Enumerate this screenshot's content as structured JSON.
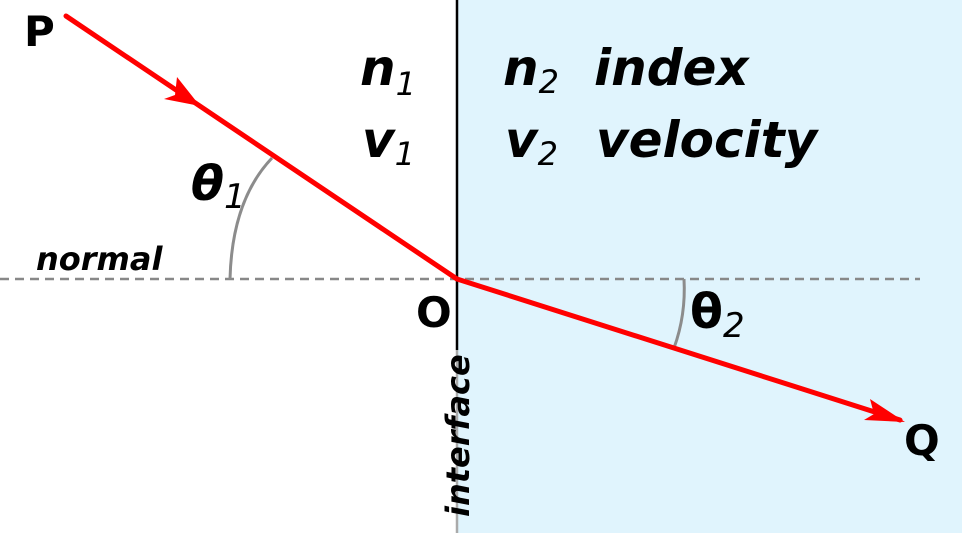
{
  "points": {
    "p": "P",
    "o": "O",
    "q": "Q"
  },
  "medium1": {
    "n_base": "n",
    "n_sub": "1",
    "v_base": "v",
    "v_sub": "1"
  },
  "medium2": {
    "n_base": "n",
    "n_sub": "2",
    "v_base": "v",
    "v_sub": "2",
    "index_word": "index",
    "velocity_word": "velocity"
  },
  "angles": {
    "theta1": {
      "symbol": "θ",
      "sub": "1"
    },
    "theta2": {
      "symbol": "θ",
      "sub": "2"
    }
  },
  "labels": {
    "normal": "normal",
    "interface": "interface"
  },
  "colors": {
    "ray": "#ff0000",
    "medium2_fill": "#e0f4fd",
    "normal_line": "#888888",
    "angle_arc": "#8c8c8c",
    "interface": "#000000"
  }
}
